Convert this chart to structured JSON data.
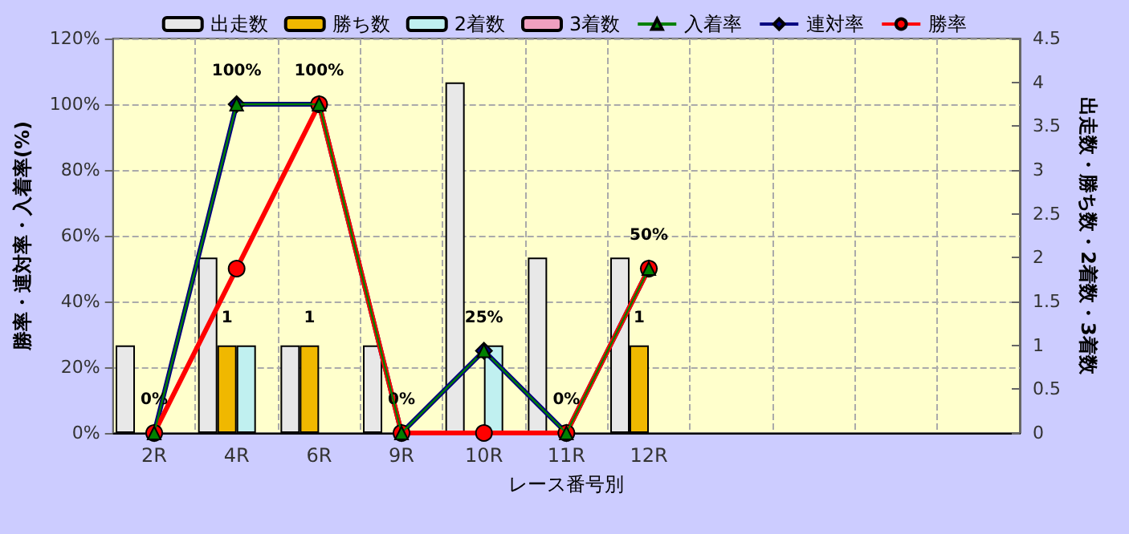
{
  "chart_data": {
    "type": "bar",
    "xlabel": "レース番号別",
    "ylabel": "勝率・連対率・入着率(%)",
    "y2label": "出走数・勝ち数・2着数・3着数",
    "categories": [
      "2R",
      "4R",
      "6R",
      "9R",
      "10R",
      "11R",
      "12R",
      null,
      null,
      null,
      null
    ],
    "series": [
      {
        "name": "出走数",
        "axis": "y2",
        "color": "#e8e8e8",
        "values": [
          1,
          2,
          1,
          1,
          4,
          2,
          2,
          null,
          null,
          null,
          null
        ]
      },
      {
        "name": "勝ち数",
        "axis": "y2",
        "color": "#f0b800",
        "values": [
          0,
          1,
          1,
          0,
          0,
          0,
          1,
          null,
          null,
          null,
          null
        ],
        "value_labels": [
          null,
          "1",
          "1",
          null,
          null,
          null,
          "1",
          null,
          null,
          null,
          null
        ]
      },
      {
        "name": "2着数",
        "axis": "y2",
        "color": "#c0f0f0",
        "values": [
          0,
          1,
          0,
          0,
          1,
          0,
          0,
          null,
          null,
          null,
          null
        ]
      },
      {
        "name": "3着数",
        "axis": "y2",
        "color": "#f0a0c0",
        "values": [
          0,
          0,
          0,
          0,
          0,
          0,
          0,
          null,
          null,
          null,
          null
        ]
      },
      {
        "name": "入着率",
        "type": "line",
        "color": "#008000",
        "marker": "triangle",
        "values": [
          0,
          100,
          100,
          0,
          25,
          0,
          50,
          null,
          null,
          null,
          null
        ]
      },
      {
        "name": "連対率",
        "type": "line",
        "color": "#000080",
        "marker": "diamond",
        "values": [
          0,
          100,
          100,
          0,
          25,
          0,
          50,
          null,
          null,
          null,
          null
        ],
        "value_labels": [
          "0%",
          "100%",
          "100%",
          "0%",
          "25%",
          "0%",
          "50%",
          null,
          null,
          null,
          null
        ]
      },
      {
        "name": "勝率",
        "type": "line",
        "color": "#ff0000",
        "marker": "circle",
        "values": [
          0,
          50,
          100,
          0,
          0,
          0,
          50,
          null,
          null,
          null,
          null
        ]
      }
    ],
    "ylim": [
      0,
      120
    ],
    "yticks": [
      {
        "value": 0,
        "label": "0%"
      },
      {
        "value": 20,
        "label": "20%"
      },
      {
        "value": 40,
        "label": "40%"
      },
      {
        "value": 60,
        "label": "60%"
      },
      {
        "value": 80,
        "label": "80%"
      },
      {
        "value": 100,
        "label": "100%"
      },
      {
        "value": 120,
        "label": "120%"
      }
    ],
    "y2lim": [
      0,
      4.5
    ],
    "y2ticks": [
      0,
      0.5,
      1,
      1.5,
      2,
      2.5,
      3,
      3.5,
      4,
      4.5
    ],
    "grid": true,
    "legend": "top"
  }
}
